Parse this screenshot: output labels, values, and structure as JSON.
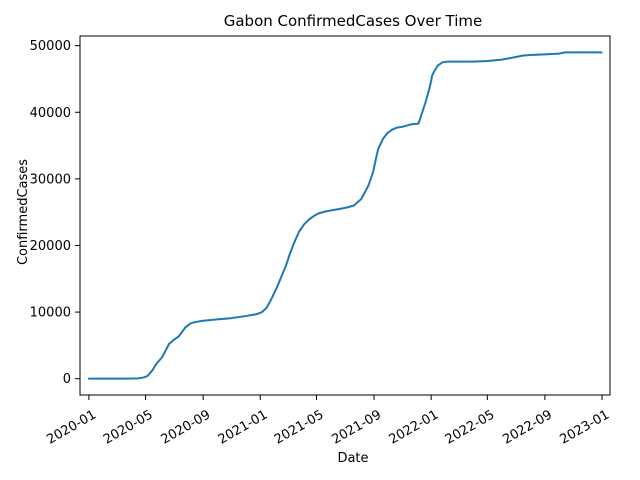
{
  "chart_data": {
    "type": "line",
    "title": "Gabon  ConfirmedCases Over Time",
    "xlabel": "Date",
    "ylabel": "ConfirmedCases",
    "xlim": [
      "2019-12-13",
      "2023-01-18"
    ],
    "ylim": [
      -2450,
      51450
    ],
    "x_ticks": [
      "2020-01-01",
      "2020-05-01",
      "2020-09-01",
      "2021-01-01",
      "2021-05-01",
      "2021-09-01",
      "2022-01-01",
      "2022-05-01",
      "2022-09-01",
      "2023-01-01"
    ],
    "x_tick_labels": [
      "2020-01",
      "2020-05",
      "2020-09",
      "2021-01",
      "2021-05",
      "2021-09",
      "2022-01",
      "2022-05",
      "2022-09",
      "2023-01"
    ],
    "y_ticks": [
      0,
      10000,
      20000,
      30000,
      40000,
      50000
    ],
    "y_tick_labels": [
      "0",
      "10000",
      "20000",
      "30000",
      "40000",
      "50000"
    ],
    "grid": false,
    "color": "#1f77b4",
    "series": [
      {
        "x": [
          "2020-01-01",
          "2020-03-12",
          "2020-04-01",
          "2020-04-15",
          "2020-04-25",
          "2020-05-05",
          "2020-05-15",
          "2020-05-25",
          "2020-06-05",
          "2020-06-15",
          "2020-06-20",
          "2020-06-28",
          "2020-07-10",
          "2020-07-20",
          "2020-07-25",
          "2020-08-05",
          "2020-08-15",
          "2020-09-01",
          "2020-09-15",
          "2020-10-01",
          "2020-11-01",
          "2020-12-01",
          "2020-12-25",
          "2021-01-05",
          "2021-01-15",
          "2021-01-25",
          "2021-02-05",
          "2021-02-15",
          "2021-02-25",
          "2021-03-05",
          "2021-03-15",
          "2021-03-25",
          "2021-04-05",
          "2021-04-15",
          "2021-04-25",
          "2021-05-05",
          "2021-05-20",
          "2021-06-05",
          "2021-06-20",
          "2021-07-05",
          "2021-07-20",
          "2021-08-05",
          "2021-08-20",
          "2021-08-30",
          "2021-09-05",
          "2021-09-10",
          "2021-09-20",
          "2021-09-30",
          "2021-10-10",
          "2021-10-20",
          "2021-10-30",
          "2021-11-10",
          "2021-11-20",
          "2021-12-05",
          "2021-12-20",
          "2021-12-28",
          "2022-01-01",
          "2022-01-03",
          "2022-01-08",
          "2022-01-15",
          "2022-01-25",
          "2022-02-05",
          "2022-02-15",
          "2022-03-01",
          "2022-04-01",
          "2022-05-01",
          "2022-06-01",
          "2022-07-01",
          "2022-07-15",
          "2022-08-01",
          "2022-09-01",
          "2022-10-01",
          "2022-10-15",
          "2022-11-01",
          "2022-12-01",
          "2022-12-31"
        ],
        "y": [
          0,
          0,
          20,
          50,
          150,
          400,
          1200,
          2300,
          3200,
          4500,
          5200,
          5700,
          6300,
          7200,
          7700,
          8300,
          8500,
          8700,
          8800,
          8900,
          9100,
          9400,
          9700,
          10000,
          10700,
          12000,
          13600,
          15300,
          17000,
          18700,
          20500,
          22100,
          23200,
          23900,
          24400,
          24800,
          25100,
          25300,
          25500,
          25700,
          26000,
          27000,
          29000,
          31000,
          33000,
          34500,
          36000,
          36900,
          37400,
          37700,
          37800,
          38000,
          38200,
          38300,
          41500,
          43500,
          44700,
          45500,
          46200,
          47000,
          47500,
          47600,
          47600,
          47600,
          47600,
          47700,
          47900,
          48300,
          48500,
          48600,
          48700,
          48800,
          49000,
          49000,
          49000,
          49000
        ]
      }
    ]
  }
}
